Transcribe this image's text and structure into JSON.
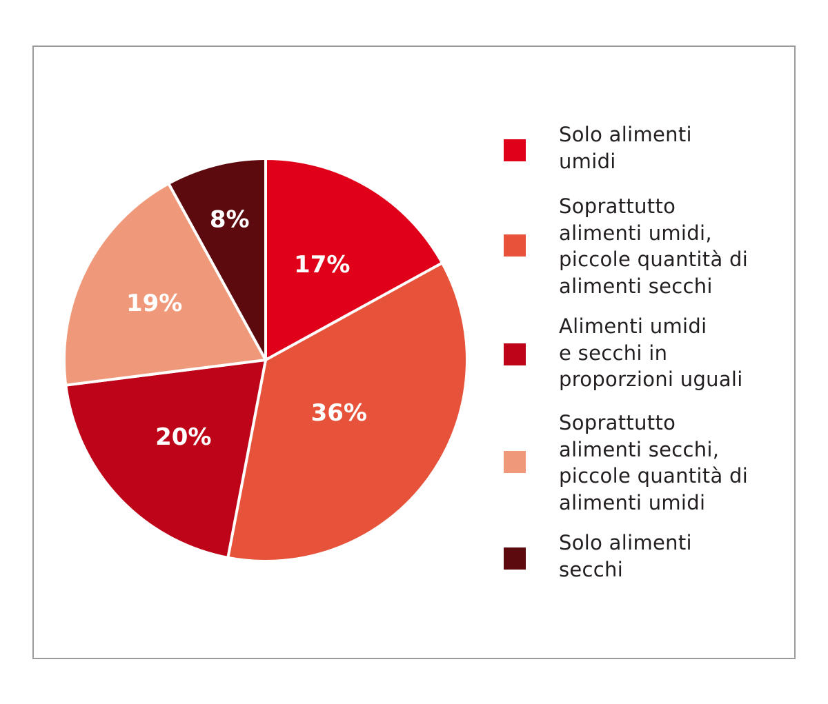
{
  "chart_data": {
    "type": "pie",
    "title": "",
    "legend_position": "right",
    "slices": [
      {
        "label": "Solo alimenti\numidi",
        "value": 17,
        "display": "17%",
        "color": "#e1001a"
      },
      {
        "label": "Soprattutto\nalimenti umidi,\npiccole quantità di\nalimenti secchi",
        "value": 36,
        "display": "36%",
        "color": "#e6533a"
      },
      {
        "label": "Alimenti umidi\ne secchi in\nproporzioni uguali",
        "value": 20,
        "display": "20%",
        "color": "#bd0418"
      },
      {
        "label": "Soprattutto\nalimenti secchi,\npiccole quantità di\nalimenti umidi",
        "value": 19,
        "display": "19%",
        "color": "#f0997a"
      },
      {
        "label": "Solo alimenti\nsecchi",
        "value": 8,
        "display": "8%",
        "color": "#5c0a0e"
      }
    ]
  }
}
